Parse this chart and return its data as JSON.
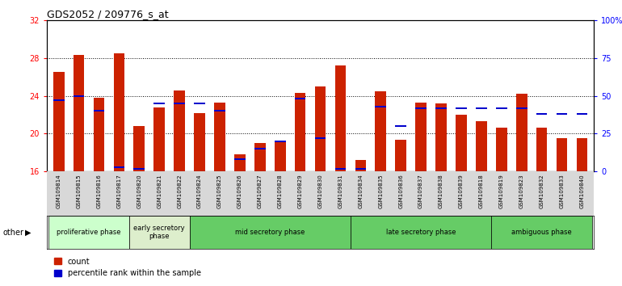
{
  "title": "GDS2052 / 209776_s_at",
  "samples": [
    "GSM109814",
    "GSM109815",
    "GSM109816",
    "GSM109817",
    "GSM109820",
    "GSM109821",
    "GSM109822",
    "GSM109824",
    "GSM109825",
    "GSM109826",
    "GSM109827",
    "GSM109828",
    "GSM109829",
    "GSM109830",
    "GSM109831",
    "GSM109834",
    "GSM109835",
    "GSM109836",
    "GSM109837",
    "GSM109838",
    "GSM109839",
    "GSM109818",
    "GSM109819",
    "GSM109823",
    "GSM109832",
    "GSM109833",
    "GSM109840"
  ],
  "count_values": [
    26.5,
    28.3,
    23.8,
    28.5,
    20.8,
    22.8,
    24.6,
    22.2,
    23.3,
    17.8,
    19.0,
    19.2,
    24.3,
    25.0,
    27.2,
    17.2,
    24.5,
    19.4,
    23.3,
    23.2,
    22.0,
    21.3,
    20.6,
    24.2,
    20.6,
    19.5,
    19.5
  ],
  "percentile_values": [
    47,
    50,
    40,
    3,
    2,
    45,
    45,
    45,
    40,
    8,
    15,
    20,
    48,
    22,
    2,
    2,
    43,
    30,
    42,
    42,
    42,
    42,
    42,
    42,
    38,
    38,
    38
  ],
  "phase_defs": [
    {
      "label": "proliferative phase",
      "start": 0,
      "end": 3,
      "color": "#ccffcc"
    },
    {
      "label": "early secretory\nphase",
      "start": 4,
      "end": 6,
      "color": "#ddeecc"
    },
    {
      "label": "mid secretory phase",
      "start": 7,
      "end": 14,
      "color": "#66cc66"
    },
    {
      "label": "late secretory phase",
      "start": 15,
      "end": 21,
      "color": "#66cc66"
    },
    {
      "label": "ambiguous phase",
      "start": 22,
      "end": 26,
      "color": "#66cc66"
    }
  ],
  "ylim_left": [
    16,
    32
  ],
  "ylim_right": [
    0,
    100
  ],
  "yticks_left": [
    16,
    20,
    24,
    28,
    32
  ],
  "yticks_right": [
    0,
    25,
    50,
    75,
    100
  ],
  "ytick_right_labels": [
    "0",
    "25",
    "50",
    "75",
    "100%"
  ],
  "bar_color": "#cc2200",
  "percentile_color": "#0000cc",
  "gridline_y": [
    20,
    24,
    28
  ]
}
